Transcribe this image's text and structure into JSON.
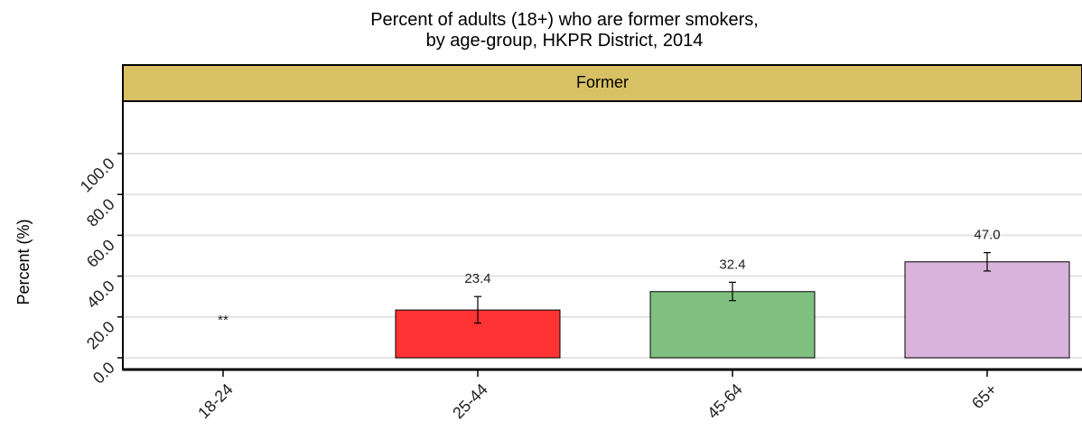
{
  "chart_data": {
    "type": "bar",
    "title_lines": [
      "Percent of adults (18+) who are former smokers,",
      "by age-group, HKPR District, 2014"
    ],
    "facet_label": "Former",
    "ylabel": "Percent (%)",
    "xlabel": "",
    "ylim": [
      0,
      100
    ],
    "yticks": [
      "0.0",
      "20.0",
      "40.0",
      "60.0",
      "80.0",
      "100.0"
    ],
    "grid": true,
    "categories": [
      "18-24",
      "25-44",
      "45-64",
      "65+"
    ],
    "values": [
      null,
      23.4,
      32.4,
      47.0
    ],
    "data_labels": [
      "**",
      "23.4",
      "32.4",
      "47.0"
    ],
    "error_low": [
      null,
      17.0,
      28.0,
      42.5
    ],
    "error_high": [
      null,
      30.0,
      37.0,
      51.5
    ],
    "colors": [
      "#ffffff",
      "#ff3333",
      "#80c080",
      "#d9b3dc"
    ],
    "strip_color": "#d8c064"
  }
}
